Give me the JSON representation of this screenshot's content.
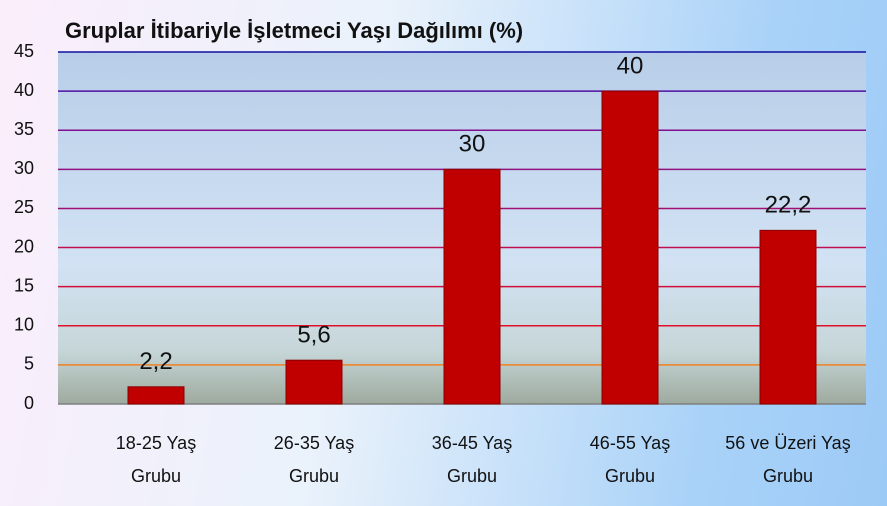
{
  "chart_data": {
    "type": "bar",
    "title": "Gruplar İtibariyle İşletmeci Yaşı Dağılımı (%)",
    "categories": [
      "18-25 Yaş Grubu",
      "26-35 Yaş Grubu",
      "36-45 Yaş Grubu",
      "46-55 Yaş Grubu",
      "56 ve Üzeri Yaş Grubu"
    ],
    "values": [
      2.2,
      5.6,
      30,
      40,
      22.2
    ],
    "value_labels": [
      "2,2",
      "5,6",
      "30",
      "40",
      "22,2"
    ],
    "color": "#c00000",
    "ylim": [
      0,
      45
    ],
    "yticks": [
      0,
      5,
      10,
      15,
      20,
      25,
      30,
      35,
      40,
      45
    ],
    "grid": true,
    "grid_colors": [
      "#7f7f7f",
      "#f08020",
      "#e0102a",
      "#d0103a",
      "#c01050",
      "#a01070",
      "#901080",
      "#801090",
      "#5010a0",
      "#1010a0"
    ]
  }
}
